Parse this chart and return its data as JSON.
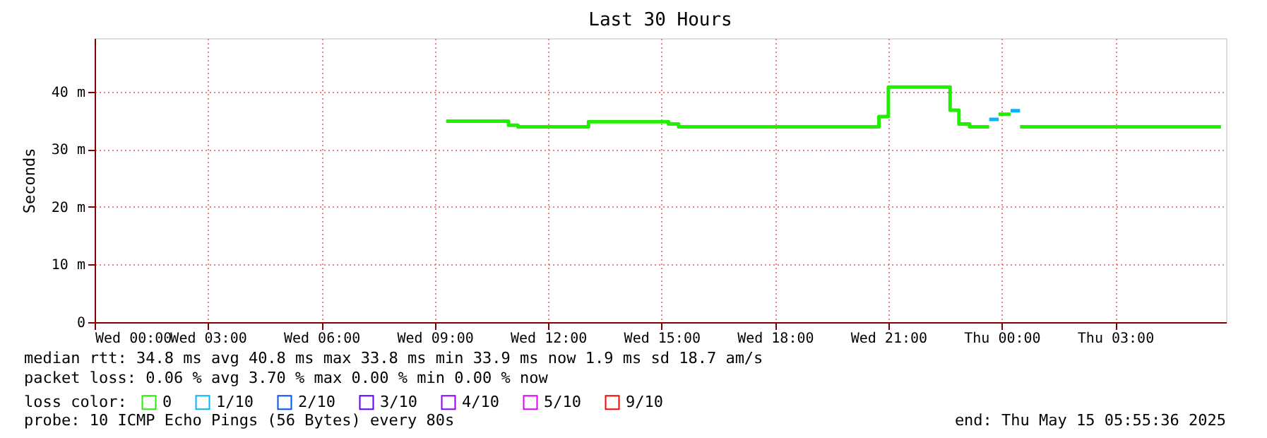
{
  "chart_data": {
    "type": "step",
    "title": "Last 30 Hours",
    "ylabel": "Seconds",
    "legend_title": "loss color:",
    "legend": "bottom",
    "grid": true,
    "marker": "none",
    "line_style": "solid",
    "xlim": [
      "2025-05-14T00:00",
      "2025-05-15T05:56"
    ],
    "xticks": [
      {
        "value": "2025-05-14T00:00",
        "label": "Wed 00:00"
      },
      {
        "value": "2025-05-14T03:00",
        "label": "Wed 03:00"
      },
      {
        "value": "2025-05-14T06:00",
        "label": "Wed 06:00"
      },
      {
        "value": "2025-05-14T09:00",
        "label": "Wed 09:00"
      },
      {
        "value": "2025-05-14T12:00",
        "label": "Wed 12:00"
      },
      {
        "value": "2025-05-14T15:00",
        "label": "Wed 15:00"
      },
      {
        "value": "2025-05-14T18:00",
        "label": "Wed 18:00"
      },
      {
        "value": "2025-05-14T21:00",
        "label": "Wed 21:00"
      },
      {
        "value": "2025-05-15T00:00",
        "label": "Thu 00:00"
      },
      {
        "value": "2025-05-15T03:00",
        "label": "Thu 03:00"
      }
    ],
    "ylim": [
      0,
      49.3
    ],
    "yticks": [
      0,
      {
        "value": 10,
        "label": "10 m"
      },
      {
        "value": 20,
        "label": "20 m"
      },
      {
        "value": 30,
        "label": "30 m"
      },
      {
        "value": 40,
        "label": "40 m"
      }
    ],
    "series": [
      {
        "name": "0",
        "color": "#20f000",
        "x": [
          "2025-05-14T09:18",
          "2025-05-14T10:57",
          "2025-05-14T11:12",
          "2025-05-14T13:04",
          "2025-05-14T15:11",
          "2025-05-14T15:27",
          "2025-05-14T20:45",
          "2025-05-14T21:00",
          "2025-05-14T22:38",
          "2025-05-14T22:52",
          "2025-05-14T23:09",
          "2025-05-14T23:40",
          "2025-05-14T23:48",
          "2025-05-14T23:55",
          "2025-05-15T00:14",
          "2025-05-15T00:22",
          "2025-05-15T00:29",
          "2025-05-15T05:48"
        ],
        "values": [
          34.9,
          34.2,
          33.9,
          34.8,
          34.4,
          33.9,
          35.7,
          40.8,
          36.8,
          34.4,
          33.9,
          33.9,
          null,
          36.1,
          36.1,
          null,
          33.9,
          33.9
        ]
      },
      {
        "name": "1/10",
        "color": "#00b4ff",
        "x": [
          "2025-05-14T23:40",
          "2025-05-14T23:55",
          "2025-05-15T00:00",
          "2025-05-15T00:14",
          "2025-05-15T00:29"
        ],
        "values": [
          35.2,
          35.2,
          null,
          36.7,
          36.7
        ]
      },
      {
        "name": "2/10",
        "color": "#0050ff"
      },
      {
        "name": "3/10",
        "color": "#5a00ff"
      },
      {
        "name": "4/10",
        "color": "#8c00ff"
      },
      {
        "name": "5/10",
        "color": "#e000ff"
      },
      {
        "name": "9/10",
        "color": "#ff0000"
      }
    ],
    "annotations": [
      "median rtt:  34.8 ms avg  40.8 ms max  33.8 ms min  33.9 ms now  1.9 ms sd  18.7   am/s",
      "packet loss: 0.06 % avg  3.70 % max  0.00 % min  0.00 % now",
      "probe:       10 ICMP Echo Pings (56 Bytes) every 80s",
      "end: Thu May 15 05:55:36 2025"
    ]
  }
}
